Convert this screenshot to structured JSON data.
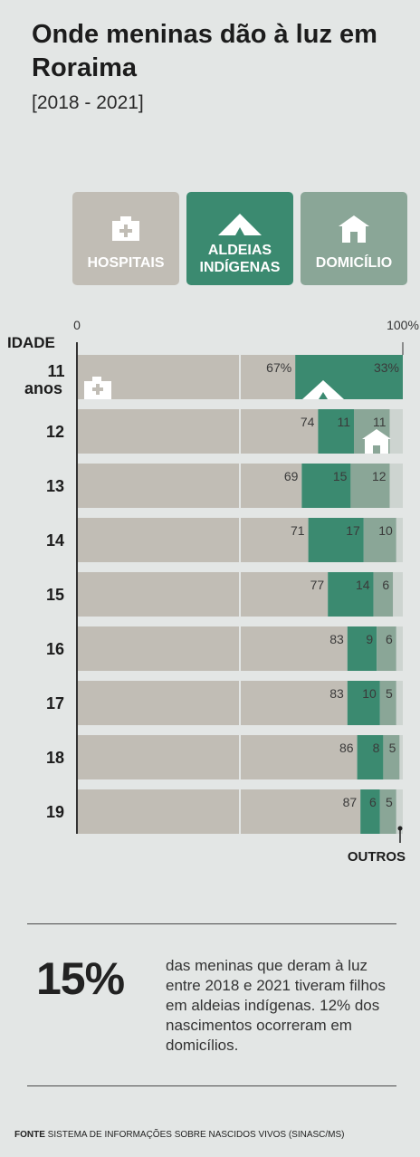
{
  "title": "Onde meninas dão à luz em Roraima",
  "subtitle": "[2018 - 2021]",
  "legend": [
    {
      "key": "hospitais",
      "label": "HOSPITAIS",
      "icon": "hospital-icon",
      "color": "#c1bdb5"
    },
    {
      "key": "aldeias",
      "label": "ALDEIAS INDÍGENAS",
      "icon": "tent-icon",
      "color": "#3b8a70"
    },
    {
      "key": "domicilio",
      "label": "DOMICÍLIO",
      "icon": "house-icon",
      "color": "#8aa697"
    }
  ],
  "chart_data": {
    "type": "bar",
    "orientation": "horizontal",
    "stacked": true,
    "ylabel": "IDADE",
    "xlim": [
      0,
      100
    ],
    "x_ticks": [
      "0",
      "100%"
    ],
    "categories": [
      "11 anos",
      "12",
      "13",
      "14",
      "15",
      "16",
      "17",
      "18",
      "19"
    ],
    "series": [
      {
        "name": "HOSPITAIS",
        "color": "#c1bdb5",
        "values": [
          67,
          74,
          69,
          71,
          77,
          83,
          83,
          86,
          87
        ],
        "labels": [
          "67%",
          "74",
          "69",
          "71",
          "77",
          "83",
          "83",
          "86",
          "87"
        ]
      },
      {
        "name": "ALDEIAS INDÍGENAS",
        "color": "#3b8a70",
        "values": [
          33,
          11,
          15,
          17,
          14,
          9,
          10,
          8,
          6
        ],
        "labels": [
          "33%",
          "11",
          "15",
          "17",
          "14",
          "9",
          "10",
          "8",
          "6"
        ]
      },
      {
        "name": "DOMICÍLIO",
        "color": "#8aa697",
        "values": [
          0,
          11,
          12,
          10,
          6,
          6,
          5,
          5,
          5
        ],
        "labels": [
          "",
          "11",
          "12",
          "10",
          "6",
          "6",
          "5",
          "5",
          "5"
        ]
      },
      {
        "name": "OUTROS",
        "color": "#cdd4d0",
        "values": [
          0,
          4,
          4,
          2,
          3,
          2,
          2,
          1,
          2
        ],
        "labels": [
          "",
          "",
          "",
          "",
          "",
          "",
          "",
          "",
          ""
        ]
      }
    ],
    "others_label": "OUTROS"
  },
  "highlight": {
    "value": "15%",
    "text": "das meninas que deram à luz entre 2018 e 2021 tiveram filhos em aldeias indígenas. 12% dos nascimentos ocorreram em domicílios."
  },
  "source": {
    "label": "FONTE",
    "text": "SISTEMA DE INFORMAÇÕES SOBRE NASCIDOS VIVOS (SINASC/MS)"
  }
}
